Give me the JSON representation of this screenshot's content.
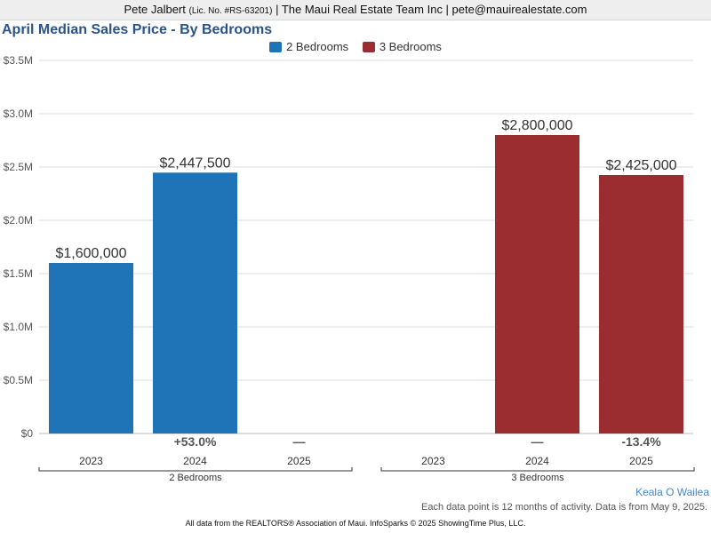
{
  "header": {
    "agent_name": "Pete Jalbert",
    "license": "(Lic. No. #RS-63201)",
    "company_email": "| The Maui Real Estate Team Inc | pete@mauirealestate.com"
  },
  "area_name": "Keala O Wailea",
  "note": "Each data point is 12 months of activity. Data is from May 9, 2025.",
  "footer": "All data from the REALTORS® Association of Maui. InfoSparks © 2025 ShowingTime Plus, LLC.",
  "chart_data": {
    "type": "bar",
    "title": "April Median Sales Price - By Bedrooms",
    "xlabel": "",
    "ylabel": "",
    "ylim": [
      0,
      3500000
    ],
    "yticks": [
      {
        "value": 0,
        "label": "$0"
      },
      {
        "value": 500000,
        "label": "$0.5M"
      },
      {
        "value": 1000000,
        "label": "$1.0M"
      },
      {
        "value": 1500000,
        "label": "$1.5M"
      },
      {
        "value": 2000000,
        "label": "$2.0M"
      },
      {
        "value": 2500000,
        "label": "$2.5M"
      },
      {
        "value": 3000000,
        "label": "$3.0M"
      },
      {
        "value": 3500000,
        "label": "$3.5M"
      }
    ],
    "grid": true,
    "legend_position": "top-center",
    "groups": [
      {
        "name": "2 Bedrooms",
        "color": "#1f74b8",
        "bars": [
          {
            "year": "2023",
            "value": 1600000,
            "label": "$1,600,000",
            "change": ""
          },
          {
            "year": "2024",
            "value": 2447500,
            "label": "$2,447,500",
            "change": "+53.0%"
          },
          {
            "year": "2025",
            "value": null,
            "label": "",
            "change": "—"
          }
        ]
      },
      {
        "name": "3 Bedrooms",
        "color": "#9b2d30",
        "bars": [
          {
            "year": "2023",
            "value": null,
            "label": "",
            "change": ""
          },
          {
            "year": "2024",
            "value": 2800000,
            "label": "$2,800,000",
            "change": "—"
          },
          {
            "year": "2025",
            "value": 2425000,
            "label": "$2,425,000",
            "change": "-13.4%"
          }
        ]
      }
    ]
  }
}
